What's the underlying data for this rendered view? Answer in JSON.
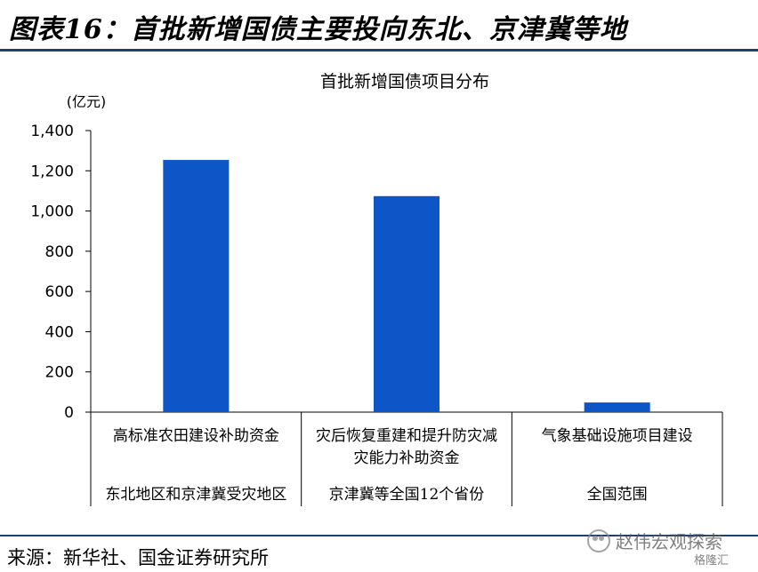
{
  "header": {
    "title": "图表16：首批新增国债主要投向东北、京津冀等地"
  },
  "chart_data": {
    "type": "bar",
    "title": "首批新增国债项目分布",
    "ylabel": "(亿元)",
    "categories": [
      "高标准农田建设补助资金",
      "灾后恢复重建和提升防灾减灾能力补助资金",
      "气象基础设施项目建设"
    ],
    "category_lines": [
      [
        "高标准农田建设补助资金"
      ],
      [
        "灾后恢复重建和提升防灾减",
        "灾能力补助资金"
      ],
      [
        "气象基础设施项目建设"
      ]
    ],
    "regions": [
      "东北地区和京津冀受灾地区",
      "京津冀等全国12个省份",
      "全国范围"
    ],
    "values": [
      1254,
      1074,
      48
    ],
    "ylim": [
      0,
      1400
    ],
    "yticks": [
      0,
      200,
      400,
      600,
      800,
      1000,
      1200,
      1400
    ],
    "ytick_labels": [
      "0",
      "200",
      "400",
      "600",
      "800",
      "1,000",
      "1,200",
      "1,400"
    ],
    "bar_color": "#0e56c8",
    "grid": false
  },
  "footer": {
    "source": "来源：新华社、国金证券研究所"
  },
  "watermark": {
    "text": "赵伟宏观探索",
    "sub": "格隆汇"
  }
}
